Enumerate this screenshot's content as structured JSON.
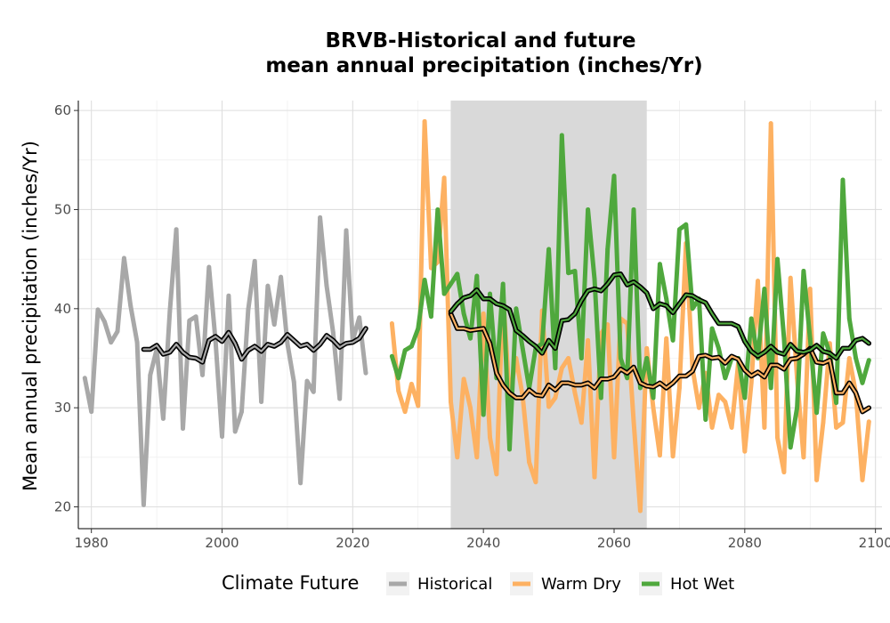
{
  "chart_data": {
    "type": "line",
    "title_lines": [
      "BRVB-Historical and future",
      "mean annual precipitation (inches/Yr)"
    ],
    "xlabel": "",
    "ylabel": "Mean annual precipitation (inches/Yr)",
    "xlim": [
      1978,
      2101
    ],
    "ylim": [
      17.8,
      61
    ],
    "x_ticks": [
      1980,
      2000,
      2020,
      2040,
      2060,
      2080,
      2100
    ],
    "y_ticks": [
      20,
      30,
      40,
      50,
      60
    ],
    "grid": true,
    "shaded_period": [
      2035,
      2065
    ],
    "legend": {
      "title": "Climate Future",
      "position": "bottom"
    },
    "colors": {
      "Historical": "#a8a8a8",
      "Warm Dry": "#fdb162",
      "Hot Wet": "#4fa83d",
      "shade": "#d9d9d9",
      "smooth": "#000000"
    },
    "series": [
      {
        "name": "Historical",
        "x": [
          1979,
          1980,
          1981,
          1982,
          1983,
          1984,
          1985,
          1986,
          1987,
          1988,
          1989,
          1990,
          1991,
          1992,
          1993,
          1994,
          1995,
          1996,
          1997,
          1998,
          1999,
          2000,
          2001,
          2002,
          2003,
          2004,
          2005,
          2006,
          2007,
          2008,
          2009,
          2010,
          2011,
          2012,
          2013,
          2014,
          2015,
          2016,
          2017,
          2018,
          2019,
          2020,
          2021,
          2022
        ],
        "values": [
          33,
          29.6,
          39.9,
          38.7,
          36.6,
          37.7,
          45.1,
          40.3,
          36.6,
          20.2,
          33.3,
          35.9,
          28.9,
          39.7,
          48.0,
          27.9,
          38.8,
          39.2,
          33.3,
          44.2,
          36.7,
          27.1,
          41.3,
          27.6,
          29.6,
          39.9,
          44.8,
          30.6,
          42.3,
          38.4,
          43.2,
          36.5,
          32.6,
          22.4,
          32.7,
          31.6,
          49.2,
          42.3,
          37.6,
          30.9,
          47.9,
          36.8,
          39.1,
          33.5
        ]
      },
      {
        "name": "Warm Dry",
        "x": [
          2026,
          2027,
          2028,
          2029,
          2030,
          2031,
          2032,
          2033,
          2034,
          2035,
          2036,
          2037,
          2038,
          2039,
          2040,
          2041,
          2042,
          2043,
          2044,
          2045,
          2046,
          2047,
          2048,
          2049,
          2050,
          2051,
          2052,
          2053,
          2054,
          2055,
          2056,
          2057,
          2058,
          2059,
          2060,
          2061,
          2062,
          2063,
          2064,
          2065,
          2066,
          2067,
          2068,
          2069,
          2070,
          2071,
          2072,
          2073,
          2074,
          2075,
          2076,
          2077,
          2078,
          2079,
          2080,
          2081,
          2082,
          2083,
          2084,
          2085,
          2086,
          2087,
          2088,
          2089,
          2090,
          2091,
          2092,
          2093,
          2094,
          2095,
          2096,
          2097,
          2098,
          2099
        ],
        "values": [
          38.5,
          31.7,
          29.6,
          32.4,
          30.2,
          58.9,
          44.1,
          44.7,
          53.2,
          30.6,
          25.0,
          32.9,
          30.0,
          25.0,
          39.5,
          27.0,
          23.3,
          41.5,
          31.0,
          35.0,
          31.2,
          24.5,
          22.5,
          39.8,
          30.1,
          31.0,
          34.0,
          35.0,
          31.5,
          28.5,
          36.8,
          23.0,
          37.5,
          38.4,
          25.0,
          39.0,
          38.5,
          28.6,
          19.6,
          36.0,
          30.0,
          25.2,
          37.0,
          25.1,
          32.0,
          46.6,
          34.0,
          30.0,
          33.5,
          28.0,
          31.3,
          30.6,
          28.0,
          34.5,
          25.6,
          32.5,
          42.8,
          28.0,
          58.7,
          27.0,
          23.5,
          43.1,
          33.0,
          25.0,
          42.0,
          22.7,
          28.5,
          36.5,
          28.0,
          28.5,
          35.0,
          31.5,
          22.7,
          28.6
        ]
      },
      {
        "name": "Hot Wet",
        "x": [
          2026,
          2027,
          2028,
          2029,
          2030,
          2031,
          2032,
          2033,
          2034,
          2035,
          2036,
          2037,
          2038,
          2039,
          2040,
          2041,
          2042,
          2043,
          2044,
          2045,
          2046,
          2047,
          2048,
          2049,
          2050,
          2051,
          2052,
          2053,
          2054,
          2055,
          2056,
          2057,
          2058,
          2059,
          2060,
          2061,
          2062,
          2063,
          2064,
          2065,
          2066,
          2067,
          2068,
          2069,
          2070,
          2071,
          2072,
          2073,
          2074,
          2075,
          2076,
          2077,
          2078,
          2079,
          2080,
          2081,
          2082,
          2083,
          2084,
          2085,
          2086,
          2087,
          2088,
          2089,
          2090,
          2091,
          2092,
          2093,
          2094,
          2095,
          2096,
          2097,
          2098,
          2099
        ],
        "values": [
          35.2,
          33.0,
          35.8,
          36.2,
          38.0,
          42.9,
          39.2,
          50.0,
          41.5,
          42.5,
          43.5,
          39.5,
          37.0,
          43.3,
          29.3,
          41.5,
          33.0,
          42.5,
          25.8,
          40.0,
          36.0,
          32.0,
          36.0,
          36.5,
          46.0,
          34.0,
          57.5,
          43.6,
          43.8,
          35.0,
          50.0,
          43.0,
          31.0,
          46.0,
          53.4,
          35.0,
          33.0,
          50.0,
          32.0,
          35.0,
          31.0,
          44.5,
          41.0,
          36.8,
          48.0,
          48.5,
          40.0,
          41.0,
          28.8,
          38.0,
          36.0,
          33.0,
          35.0,
          35.0,
          31.0,
          39.0,
          35.0,
          42.0,
          32.0,
          45.0,
          37.0,
          26.0,
          30.0,
          43.8,
          37.0,
          29.5,
          37.5,
          35.5,
          30.5,
          53.0,
          39.0,
          35.0,
          32.5,
          34.8
        ]
      },
      {
        "name": "Historical smoothed",
        "x": [
          1988,
          1989,
          1990,
          1991,
          1992,
          1993,
          1994,
          1995,
          1996,
          1997,
          1998,
          1999,
          2000,
          2001,
          2002,
          2003,
          2004,
          2005,
          2006,
          2007,
          2008,
          2009,
          2010,
          2011,
          2012,
          2013,
          2014,
          2015,
          2016,
          2017,
          2018,
          2019,
          2020,
          2021,
          2022
        ],
        "values": [
          35.9,
          35.9,
          36.3,
          35.4,
          35.6,
          36.4,
          35.6,
          35.1,
          35.0,
          34.6,
          36.8,
          37.2,
          36.7,
          37.6,
          36.5,
          34.9,
          35.8,
          36.2,
          35.7,
          36.4,
          36.2,
          36.6,
          37.4,
          36.8,
          36.2,
          36.4,
          35.8,
          36.4,
          37.3,
          36.8,
          36.1,
          36.5,
          36.6,
          37.0,
          38.0
        ]
      },
      {
        "name": "Warm Dry smoothed",
        "x": [
          2035,
          2036,
          2037,
          2038,
          2039,
          2040,
          2041,
          2042,
          2043,
          2044,
          2045,
          2046,
          2047,
          2048,
          2049,
          2050,
          2051,
          2052,
          2053,
          2054,
          2055,
          2056,
          2057,
          2058,
          2059,
          2060,
          2061,
          2062,
          2063,
          2064,
          2065,
          2066,
          2067,
          2068,
          2069,
          2070,
          2071,
          2072,
          2073,
          2074,
          2075,
          2076,
          2077,
          2078,
          2079,
          2080,
          2081,
          2082,
          2083,
          2084,
          2085,
          2086,
          2087,
          2088,
          2089,
          2090,
          2091,
          2092,
          2093,
          2094,
          2095,
          2096,
          2097,
          2098,
          2099
        ],
        "values": [
          39.5,
          38.0,
          38.0,
          37.8,
          37.9,
          38.0,
          36.5,
          33.5,
          32.3,
          31.5,
          31.0,
          31.0,
          31.8,
          31.3,
          31.2,
          32.3,
          31.8,
          32.5,
          32.5,
          32.3,
          32.3,
          32.5,
          32.0,
          32.9,
          32.9,
          33.1,
          33.9,
          33.5,
          34.1,
          32.5,
          32.2,
          32.1,
          32.5,
          32.0,
          32.5,
          33.2,
          33.2,
          33.7,
          35.2,
          35.3,
          35.0,
          35.1,
          34.5,
          35.2,
          34.9,
          33.8,
          33.2,
          33.6,
          33.1,
          34.3,
          34.3,
          33.9,
          34.9,
          35.0,
          35.4,
          36.0,
          34.6,
          34.5,
          34.8,
          31.5,
          31.5,
          32.5,
          31.5,
          29.6,
          30.0
        ]
      },
      {
        "name": "Hot Wet smoothed",
        "x": [
          2035,
          2036,
          2037,
          2038,
          2039,
          2040,
          2041,
          2042,
          2043,
          2044,
          2045,
          2046,
          2047,
          2048,
          2049,
          2050,
          2051,
          2052,
          2053,
          2054,
          2055,
          2056,
          2057,
          2058,
          2059,
          2060,
          2061,
          2062,
          2063,
          2064,
          2065,
          2066,
          2067,
          2068,
          2069,
          2070,
          2071,
          2072,
          2073,
          2074,
          2075,
          2076,
          2077,
          2078,
          2079,
          2080,
          2081,
          2082,
          2083,
          2084,
          2085,
          2086,
          2087,
          2088,
          2089,
          2090,
          2091,
          2092,
          2093,
          2094,
          2095,
          2096,
          2097,
          2098,
          2099
        ],
        "values": [
          39.7,
          40.5,
          41.1,
          41.3,
          41.9,
          41.0,
          41.0,
          40.5,
          40.3,
          39.9,
          37.8,
          37.3,
          36.7,
          36.2,
          35.5,
          36.8,
          36.0,
          38.8,
          38.9,
          39.5,
          40.8,
          41.8,
          42.0,
          41.8,
          42.5,
          43.4,
          43.5,
          42.4,
          42.7,
          42.2,
          41.6,
          40.0,
          40.5,
          40.3,
          39.6,
          40.5,
          41.4,
          41.3,
          40.9,
          40.6,
          39.5,
          38.5,
          38.5,
          38.5,
          38.2,
          36.7,
          35.7,
          35.2,
          35.6,
          36.2,
          35.6,
          35.4,
          36.4,
          35.7,
          35.6,
          35.8,
          36.3,
          35.7,
          35.5,
          35.0,
          36.0,
          36.0,
          36.8,
          37.0,
          36.5
        ]
      }
    ]
  }
}
